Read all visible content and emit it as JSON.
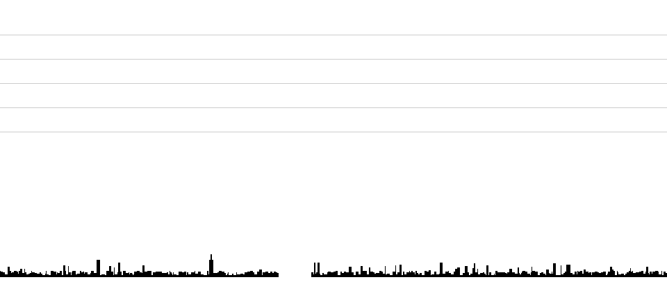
{
  "colors": {
    "background": "#ffffff",
    "rule_lines": "#cccccc",
    "skyline": "#000000"
  },
  "decoration": {
    "rule_line_count": 5,
    "skyline_icon": "city-skyline-icon"
  }
}
